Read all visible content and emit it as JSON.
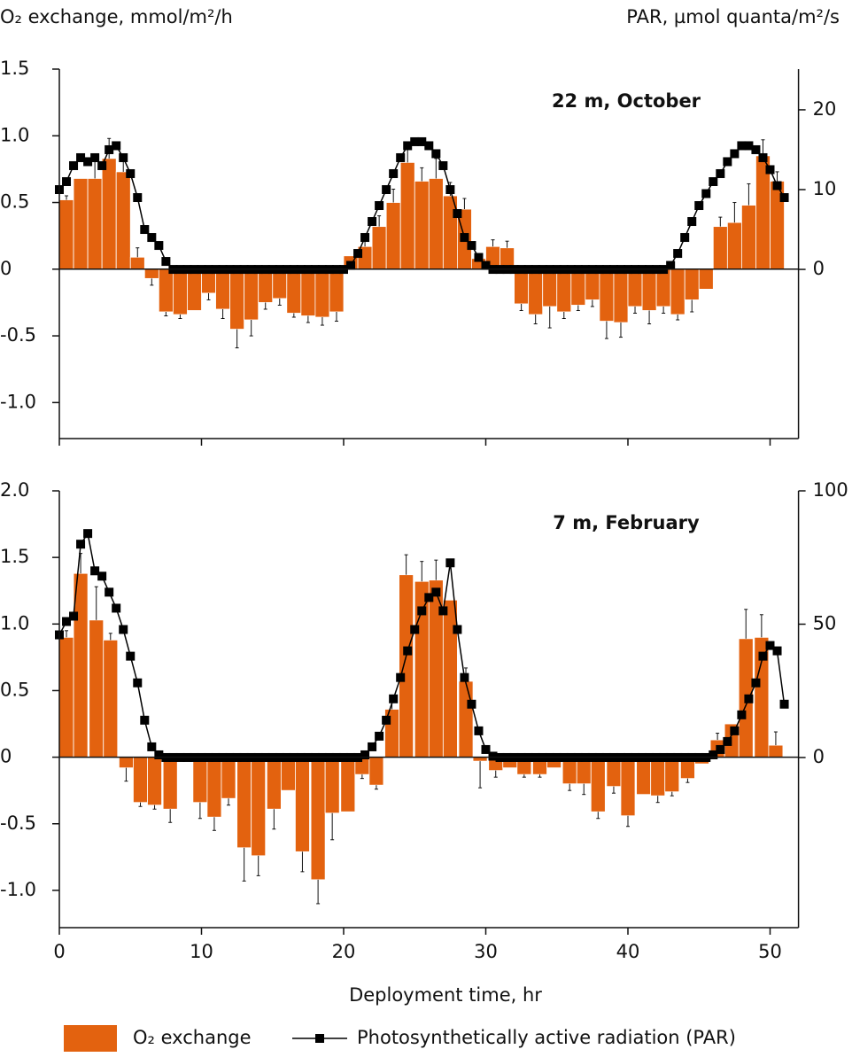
{
  "header": {
    "left_axis_title": "O₂ exchange, mmol/m²/h",
    "right_axis_title": "PAR, µmol quanta/m²/s"
  },
  "x_label": "Deployment time, hr",
  "chart_data": [
    {
      "type": "bar-line",
      "title": "22 m, October",
      "xlim": [
        0,
        52
      ],
      "ylim": [
        -1.27,
        1.5
      ],
      "y2lim": [
        -21.2,
        25.1
      ],
      "yticks": [
        1.5,
        {
          "value": 1,
          "label": "1.0"
        },
        0.5,
        0,
        -0.5,
        {
          "value": -1,
          "label": "-1.0"
        }
      ],
      "y2ticks": [
        0,
        10,
        20
      ],
      "series": [
        {
          "name": "O₂ exchange",
          "color": "#e3620f",
          "x": [
            0.5,
            1.5,
            2.5,
            3.5,
            4.5,
            5.5,
            6.5,
            7.5,
            8.5,
            9.5,
            10.5,
            11.5,
            12.5,
            13.5,
            14.5,
            15.5,
            16.5,
            17.5,
            18.5,
            19.5,
            20.5,
            21.5,
            22.5,
            23.5,
            24.5,
            25.5,
            26.5,
            27.5,
            28.5,
            29.5,
            30.5,
            31.5,
            32.5,
            33.5,
            34.5,
            35.5,
            36.5,
            37.5,
            38.5,
            39.5,
            40.5,
            41.5,
            42.5,
            43.5,
            44.5,
            45.5,
            46.5,
            47.5,
            48.5,
            49.5,
            50.5
          ],
          "values": [
            0.52,
            0.68,
            0.68,
            0.83,
            0.73,
            0.09,
            -0.07,
            -0.32,
            -0.34,
            -0.31,
            -0.18,
            -0.3,
            -0.45,
            -0.38,
            -0.25,
            -0.22,
            -0.33,
            -0.35,
            -0.36,
            -0.32,
            0.1,
            0.17,
            0.32,
            0.5,
            0.8,
            0.66,
            0.68,
            0.55,
            0.45,
            0.08,
            0.17,
            0.16,
            -0.26,
            -0.34,
            -0.28,
            -0.32,
            -0.27,
            -0.23,
            -0.39,
            -0.4,
            -0.28,
            -0.31,
            -0.28,
            -0.34,
            -0.23,
            -0.15,
            0.32,
            0.35,
            0.48,
            0.85,
            0.66
          ],
          "errors": [
            0.03,
            null,
            0.13,
            0.15,
            0.1,
            0.07,
            0.05,
            0.03,
            0.03,
            null,
            0.05,
            0.07,
            0.14,
            0.12,
            0.05,
            0.05,
            0.03,
            0.05,
            0.06,
            0.07,
            null,
            0.05,
            0.08,
            0.1,
            0.12,
            0.1,
            0.15,
            0.1,
            0.08,
            0.03,
            0.05,
            0.05,
            0.05,
            0.07,
            0.16,
            0.05,
            0.04,
            0.05,
            0.13,
            0.11,
            0.05,
            0.1,
            0.05,
            0.04,
            0.09,
            null,
            0.07,
            0.15,
            0.16,
            0.12,
            0.07
          ]
        },
        {
          "name": "Photosynthetically active radiation (PAR)",
          "color": "#000000",
          "axis": "y2",
          "x": [
            0,
            0.5,
            1,
            1.5,
            2,
            2.5,
            3,
            3.5,
            4,
            4.5,
            5,
            5.5,
            6,
            6.5,
            7,
            7.5,
            8,
            8.5,
            9,
            9.5,
            10,
            10.5,
            11,
            11.5,
            12,
            12.5,
            13,
            13.5,
            14,
            14.5,
            15,
            15.5,
            16,
            16.5,
            17,
            17.5,
            18,
            18.5,
            19,
            19.5,
            20,
            20.5,
            21,
            21.5,
            22,
            22.5,
            23,
            23.5,
            24,
            24.5,
            25,
            25.5,
            26,
            26.5,
            27,
            27.5,
            28,
            28.5,
            29,
            29.5,
            30,
            30.5,
            31,
            31.5,
            32,
            32.5,
            33,
            33.5,
            34,
            34.5,
            35,
            35.5,
            36,
            36.5,
            37,
            37.5,
            38,
            38.5,
            39,
            39.5,
            40,
            40.5,
            41,
            41.5,
            42,
            42.5,
            43,
            43.5,
            44,
            44.5,
            45,
            45.5,
            46,
            46.5,
            47,
            47.5,
            48,
            48.5,
            49,
            49.5,
            50,
            50.5,
            51
          ],
          "values": [
            10,
            11,
            13,
            14,
            13.5,
            14,
            13,
            15,
            15.5,
            14,
            12,
            9,
            5,
            4,
            3,
            1,
            0,
            0,
            0,
            0,
            0,
            0,
            0,
            0,
            0,
            0,
            0,
            0,
            0,
            0,
            0,
            0,
            0,
            0,
            0,
            0,
            0,
            0,
            0,
            0,
            0,
            0.5,
            2,
            4,
            6,
            8,
            10,
            12,
            14,
            15.5,
            16,
            16,
            15.5,
            14.5,
            13,
            10,
            7,
            4,
            3,
            1.5,
            0.5,
            0,
            0,
            0,
            0,
            0,
            0,
            0,
            0,
            0,
            0,
            0,
            0,
            0,
            0,
            0,
            0,
            0,
            0,
            0,
            0,
            0,
            0,
            0,
            0,
            0,
            0.5,
            2,
            4,
            6,
            8,
            9.5,
            11,
            12,
            13.5,
            14.5,
            15.5,
            15.5,
            15,
            14,
            12.5,
            10.5,
            9
          ]
        }
      ]
    },
    {
      "type": "bar-line",
      "title": "7 m, February",
      "xlim": [
        0,
        52
      ],
      "ylim": [
        -1.28,
        2.0
      ],
      "y2lim": [
        -63.8,
        100
      ],
      "xticks": [
        0,
        10,
        20,
        30,
        40,
        50
      ],
      "yticks": [
        {
          "value": 2,
          "label": "2.0"
        },
        1.5,
        {
          "value": 1,
          "label": "1.0"
        },
        0.5,
        0,
        -0.5,
        {
          "value": -1,
          "label": "-1.0"
        }
      ],
      "y2ticks": [
        0,
        50,
        100
      ],
      "series": [
        {
          "name": "O₂ exchange",
          "color": "#e3620f",
          "x": [
            0.5,
            1.5,
            2.6,
            3.6,
            4.7,
            5.7,
            6.7,
            7.8,
            8.8,
            9.9,
            10.9,
            11.9,
            13.0,
            14.0,
            15.1,
            16.1,
            17.1,
            18.2,
            19.2,
            20.3,
            21.3,
            22.3,
            23.4,
            24.4,
            25.5,
            26.5,
            27.5,
            28.6,
            29.6,
            30.7,
            31.7,
            32.7,
            33.8,
            34.8,
            35.9,
            36.9,
            37.9,
            39.0,
            40.0,
            41.1,
            42.1,
            43.1,
            44.2,
            45.2,
            46.3,
            47.3,
            48.3,
            49.4,
            50.4
          ],
          "values": [
            0.9,
            1.38,
            1.03,
            0.88,
            -0.08,
            -0.34,
            -0.36,
            -0.39,
            -0.02,
            -0.34,
            -0.45,
            -0.31,
            -0.68,
            -0.74,
            -0.39,
            -0.25,
            -0.71,
            -0.92,
            -0.42,
            -0.41,
            -0.13,
            -0.21,
            0.36,
            1.37,
            1.32,
            1.33,
            1.18,
            0.57,
            -0.03,
            -0.1,
            -0.08,
            -0.13,
            -0.13,
            -0.08,
            -0.2,
            -0.2,
            -0.41,
            -0.22,
            -0.44,
            -0.28,
            -0.29,
            -0.26,
            -0.16,
            -0.05,
            0.13,
            0.25,
            0.89,
            0.9,
            0.09
          ],
          "errors": [
            0.05,
            0.15,
            0.25,
            0.05,
            0.1,
            0.03,
            0.03,
            0.1,
            null,
            0.12,
            0.1,
            0.05,
            0.25,
            0.15,
            0.15,
            null,
            0.15,
            0.18,
            0.2,
            null,
            0.03,
            0.03,
            0.1,
            0.15,
            0.15,
            0.15,
            null,
            0.1,
            0.2,
            0.05,
            null,
            0.02,
            0.02,
            null,
            0.05,
            0.08,
            0.05,
            0.05,
            0.08,
            null,
            0.05,
            0.03,
            0.03,
            null,
            0.05,
            null,
            0.22,
            0.17,
            0.1
          ]
        },
        {
          "name": "Photosynthetically active radiation (PAR)",
          "color": "#000000",
          "axis": "y2",
          "x": [
            0,
            0.5,
            1,
            1.5,
            2,
            2.5,
            3,
            3.5,
            4,
            4.5,
            5,
            5.5,
            6,
            6.5,
            7,
            7.5,
            8,
            8.5,
            9,
            9.5,
            10,
            10.5,
            11,
            11.5,
            12,
            12.5,
            13,
            13.5,
            14,
            14.5,
            15,
            15.5,
            16,
            16.5,
            17,
            17.5,
            18,
            18.5,
            19,
            19.5,
            20,
            20.5,
            21,
            21.5,
            22,
            22.5,
            23,
            23.5,
            24,
            24.5,
            25,
            25.5,
            26,
            26.5,
            27,
            27.5,
            28,
            28.5,
            29,
            29.5,
            30,
            30.5,
            31,
            31.5,
            32,
            32.5,
            33,
            33.5,
            34,
            34.5,
            35,
            35.5,
            36,
            36.5,
            37,
            37.5,
            38,
            38.5,
            39,
            39.5,
            40,
            40.5,
            41,
            41.5,
            42,
            42.5,
            43,
            43.5,
            44,
            44.5,
            45,
            45.5,
            46,
            46.5,
            47,
            47.5,
            48,
            48.5,
            49,
            49.5,
            50,
            50.5,
            51
          ],
          "values": [
            46,
            51,
            53,
            80,
            84,
            70,
            68,
            62,
            56,
            48,
            38,
            28,
            14,
            4,
            1,
            0,
            0,
            0,
            0,
            0,
            0,
            0,
            0,
            0,
            0,
            0,
            0,
            0,
            0,
            0,
            0,
            0,
            0,
            0,
            0,
            0,
            0,
            0,
            0,
            0,
            0,
            0,
            0,
            1,
            4,
            8,
            14,
            22,
            30,
            40,
            48,
            55,
            60,
            62,
            55,
            73,
            48,
            30,
            20,
            10,
            3,
            0.5,
            0,
            0,
            0,
            0,
            0,
            0,
            0,
            0,
            0,
            0,
            0,
            0,
            0,
            0,
            0,
            0,
            0,
            0,
            0,
            0,
            0,
            0,
            0,
            0,
            0,
            0,
            0,
            0,
            0,
            0,
            1,
            3,
            6,
            10,
            16,
            22,
            28,
            38,
            42,
            40,
            20
          ]
        }
      ]
    }
  ]
}
